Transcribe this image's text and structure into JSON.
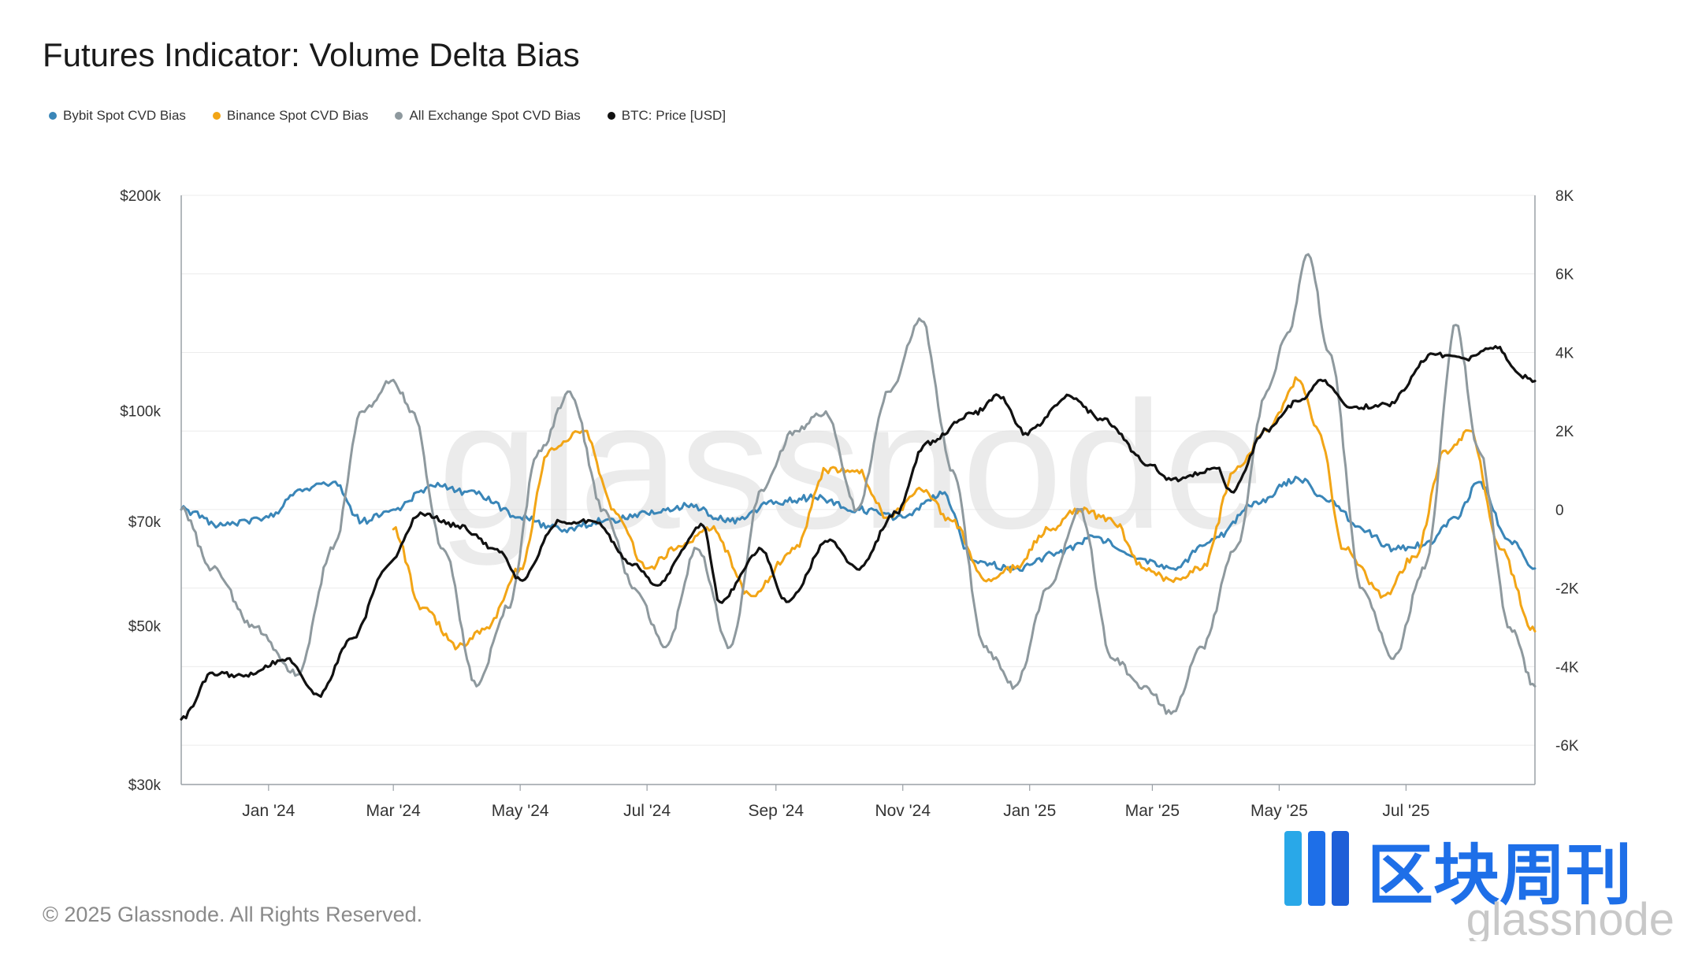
{
  "title": "Futures Indicator: Volume Delta Bias",
  "footer": "© 2025 Glassnode. All Rights Reserved.",
  "watermark": "glassnode",
  "brand": {
    "cn_text": "区块周刊",
    "sub_text": "glassnode",
    "color": "#1e6fe8"
  },
  "chart_data": {
    "type": "line",
    "x_tick_labels": [
      "Jan '24",
      "Mar '24",
      "May '24",
      "Jul '24",
      "Sep '24",
      "Nov '24",
      "Jan '25",
      "Mar '25",
      "May '25",
      "Jul '25"
    ],
    "x_range": [
      "2023-11-20",
      "2025-09-01"
    ],
    "left_axis": {
      "scale": "log",
      "range": [
        30000,
        200000
      ],
      "ticks": [
        30000,
        50000,
        70000,
        100000,
        200000
      ],
      "tick_labels": [
        "$30k",
        "$50k",
        "$70k",
        "$100k",
        "$200k"
      ]
    },
    "right_axis": {
      "range": [
        -7000,
        8000
      ],
      "ticks": [
        -6000,
        -4000,
        -2000,
        0,
        2000,
        4000,
        6000,
        8000
      ],
      "tick_labels": [
        "-6K",
        "-4K",
        "-2K",
        "0",
        "2K",
        "4K",
        "6K",
        "8K"
      ]
    },
    "grid": true,
    "legend_position": "top-left",
    "series": [
      {
        "name": "Bybit Spot CVD Bias",
        "color": "#3a86b8",
        "axis": "right",
        "x": [
          "2023-11-20",
          "2023-12-10",
          "2024-01-01",
          "2024-01-15",
          "2024-02-01",
          "2024-02-15",
          "2024-03-01",
          "2024-03-20",
          "2024-04-10",
          "2024-05-01",
          "2024-05-20",
          "2024-06-10",
          "2024-07-01",
          "2024-07-20",
          "2024-08-10",
          "2024-09-01",
          "2024-09-20",
          "2024-10-10",
          "2024-11-01",
          "2024-11-20",
          "2024-12-05",
          "2024-12-25",
          "2025-01-15",
          "2025-02-01",
          "2025-02-20",
          "2025-03-10",
          "2025-04-01",
          "2025-04-20",
          "2025-05-10",
          "2025-05-25",
          "2025-06-10",
          "2025-06-25",
          "2025-07-10",
          "2025-07-25",
          "2025-08-05",
          "2025-08-20",
          "2025-09-01"
        ],
        "y": [
          0,
          -400,
          -200,
          500,
          700,
          -300,
          0,
          600,
          400,
          -200,
          -500,
          -300,
          -100,
          100,
          -300,
          200,
          300,
          0,
          -200,
          400,
          -1300,
          -1500,
          -1100,
          -700,
          -1200,
          -1500,
          -700,
          200,
          800,
          200,
          -500,
          -1000,
          -900,
          -200,
          700,
          -800,
          -1500
        ]
      },
      {
        "name": "Binance Spot CVD Bias",
        "color": "#f2a516",
        "axis": "right",
        "x": [
          "2024-03-01",
          "2024-03-15",
          "2024-04-01",
          "2024-04-15",
          "2024-05-01",
          "2024-05-15",
          "2024-06-01",
          "2024-06-15",
          "2024-07-01",
          "2024-07-15",
          "2024-08-01",
          "2024-08-20",
          "2024-09-10",
          "2024-09-25",
          "2024-10-10",
          "2024-10-25",
          "2024-11-10",
          "2024-11-25",
          "2024-12-10",
          "2024-12-25",
          "2025-01-10",
          "2025-01-25",
          "2025-02-10",
          "2025-02-25",
          "2025-03-10",
          "2025-03-25",
          "2025-04-10",
          "2025-04-25",
          "2025-05-10",
          "2025-05-20",
          "2025-06-01",
          "2025-06-20",
          "2025-07-05",
          "2025-07-20",
          "2025-08-01",
          "2025-08-15",
          "2025-09-01"
        ],
        "y": [
          -500,
          -2500,
          -3500,
          -3000,
          -1500,
          1500,
          2000,
          0,
          -1500,
          -1000,
          -500,
          -2200,
          -1000,
          1000,
          1000,
          -200,
          500,
          -300,
          -1800,
          -1500,
          -500,
          0,
          -300,
          -1500,
          -1800,
          -1500,
          1000,
          2000,
          3300,
          2000,
          -1000,
          -2200,
          -1200,
          1500,
          2000,
          -1000,
          -3100
        ]
      },
      {
        "name": "All Exchange Spot CVD Bias",
        "color": "#8e999e",
        "axis": "right",
        "x": [
          "2023-11-20",
          "2023-12-05",
          "2023-12-25",
          "2024-01-15",
          "2024-02-01",
          "2024-02-15",
          "2024-03-01",
          "2024-03-10",
          "2024-03-25",
          "2024-04-10",
          "2024-04-25",
          "2024-05-10",
          "2024-05-25",
          "2024-06-10",
          "2024-06-25",
          "2024-07-10",
          "2024-07-25",
          "2024-08-10",
          "2024-08-25",
          "2024-09-10",
          "2024-09-25",
          "2024-10-10",
          "2024-10-25",
          "2024-11-10",
          "2024-11-25",
          "2024-12-10",
          "2024-12-25",
          "2025-01-10",
          "2025-01-25",
          "2025-02-10",
          "2025-02-25",
          "2025-03-10",
          "2025-03-25",
          "2025-04-10",
          "2025-04-25",
          "2025-05-05",
          "2025-05-15",
          "2025-05-25",
          "2025-06-10",
          "2025-06-25",
          "2025-07-10",
          "2025-07-25",
          "2025-08-05",
          "2025-08-20",
          "2025-09-01"
        ],
        "y": [
          0,
          -1500,
          -3000,
          -4200,
          -1000,
          2500,
          3300,
          2500,
          -1000,
          -4500,
          -2500,
          1500,
          3000,
          0,
          -2000,
          -3500,
          -1000,
          -3500,
          500,
          2000,
          2500,
          0,
          3000,
          4800,
          1000,
          -3500,
          -4500,
          -2000,
          0,
          -3800,
          -4500,
          -5200,
          -3500,
          -1000,
          3000,
          4500,
          6500,
          4000,
          -2000,
          -3800,
          -1500,
          4700,
          1500,
          -3000,
          -4500
        ]
      },
      {
        "name": "BTC: Price [USD]",
        "color": "#111111",
        "axis": "left",
        "x": [
          "2023-11-20",
          "2023-12-05",
          "2023-12-20",
          "2024-01-10",
          "2024-01-25",
          "2024-02-10",
          "2024-02-28",
          "2024-03-14",
          "2024-04-01",
          "2024-04-20",
          "2024-05-01",
          "2024-05-20",
          "2024-06-05",
          "2024-06-25",
          "2024-07-05",
          "2024-07-28",
          "2024-08-05",
          "2024-08-25",
          "2024-09-06",
          "2024-09-27",
          "2024-10-10",
          "2024-10-29",
          "2024-11-12",
          "2024-12-05",
          "2024-12-17",
          "2024-12-30",
          "2025-01-20",
          "2025-02-05",
          "2025-02-28",
          "2025-03-10",
          "2025-04-01",
          "2025-04-08",
          "2025-04-25",
          "2025-05-10",
          "2025-05-22",
          "2025-06-05",
          "2025-06-22",
          "2025-07-14",
          "2025-07-30",
          "2025-08-13",
          "2025-08-25",
          "2025-09-01"
        ],
        "y": [
          37000,
          43000,
          42500,
          45000,
          40000,
          48000,
          61000,
          72000,
          69000,
          64000,
          58000,
          70000,
          70000,
          61000,
          57000,
          69000,
          54000,
          64000,
          54000,
          66000,
          60000,
          72000,
          90000,
          99000,
          105000,
          93000,
          105000,
          97000,
          84000,
          80000,
          83000,
          77000,
          94000,
          103000,
          110000,
          101000,
          102000,
          120000,
          118000,
          123000,
          112000,
          110000
        ]
      }
    ]
  }
}
